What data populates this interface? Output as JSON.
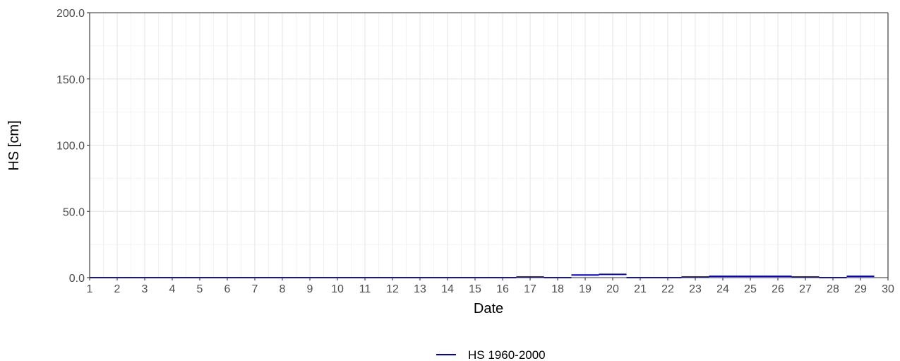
{
  "chart_data": {
    "type": "step",
    "xlabel": "Date",
    "ylabel": "HS [cm]",
    "xlim": [
      1,
      30
    ],
    "ylim": [
      0,
      200
    ],
    "x_ticks": [
      1,
      2,
      3,
      4,
      5,
      6,
      7,
      8,
      9,
      10,
      11,
      12,
      13,
      14,
      15,
      16,
      17,
      18,
      19,
      20,
      21,
      22,
      23,
      24,
      25,
      26,
      27,
      28,
      29,
      30
    ],
    "y_ticks": [
      "0.0",
      "50.0",
      "100.0",
      "150.0",
      "200.0"
    ],
    "y_tick_values": [
      0,
      50,
      100,
      150,
      200
    ],
    "grid": true,
    "legend_position": "bottom",
    "series": [
      {
        "name": "HS 1960-2000",
        "color": "#0000cc",
        "x": [
          1,
          2,
          3,
          4,
          5,
          6,
          7,
          8,
          9,
          10,
          11,
          12,
          13,
          14,
          15,
          16,
          17,
          18,
          19,
          20,
          21,
          22,
          23,
          24,
          25,
          26,
          27,
          28,
          29
        ],
        "values": [
          0,
          0,
          0,
          0,
          0,
          0,
          0,
          0,
          0,
          0,
          0,
          0,
          0,
          0,
          0,
          0,
          0.5,
          0,
          2,
          2.5,
          0,
          0,
          0.5,
          1,
          1,
          1,
          0.5,
          0,
          1
        ]
      }
    ]
  }
}
